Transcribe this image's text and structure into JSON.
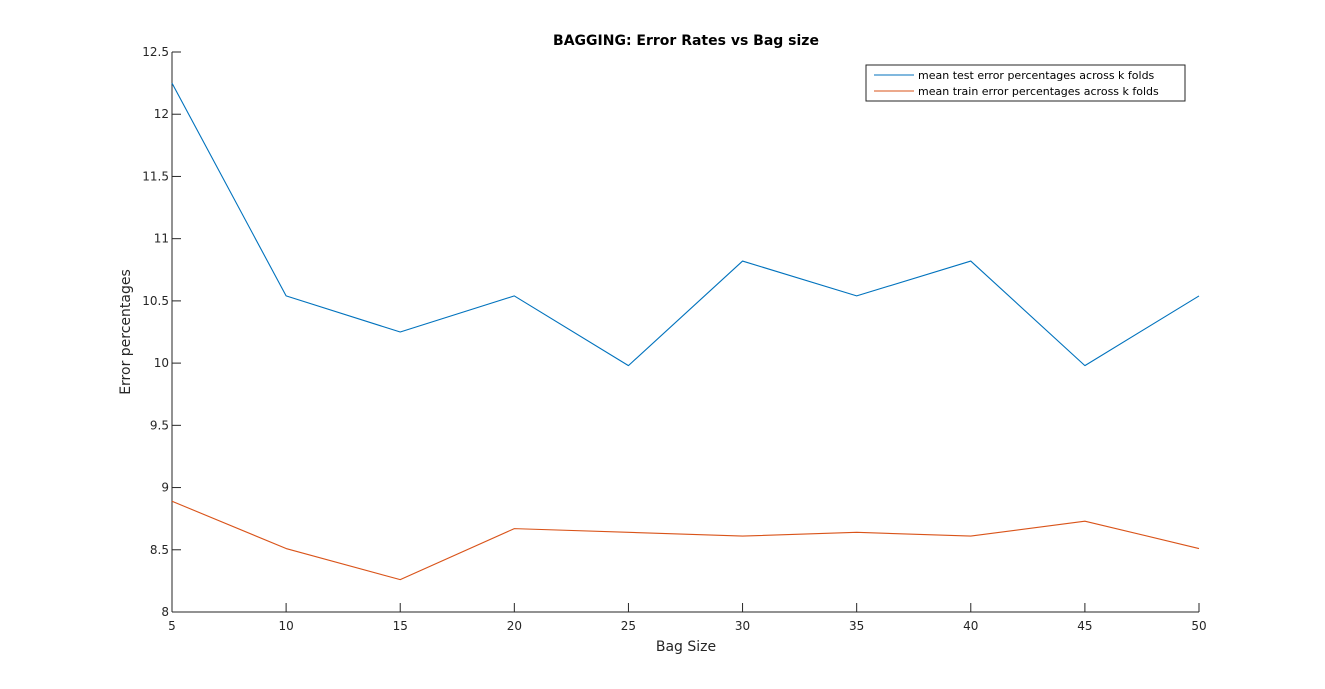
{
  "chart_data": {
    "type": "line",
    "title": "BAGGING: Error Rates vs Bag size",
    "xlabel": "Bag Size",
    "ylabel": "Error percentages",
    "xlim": [
      5,
      50
    ],
    "ylim": [
      8,
      12.5
    ],
    "x": [
      5,
      10,
      15,
      20,
      25,
      30,
      35,
      40,
      45,
      50
    ],
    "xticks": [
      "5",
      "10",
      "15",
      "20",
      "25",
      "30",
      "35",
      "40",
      "45",
      "50"
    ],
    "yticks": [
      "8",
      "8.5",
      "9",
      "9.5",
      "10",
      "10.5",
      "11",
      "11.5",
      "12",
      "12.5"
    ],
    "grid": false,
    "legend_position": "top-right",
    "series": [
      {
        "name": "mean test error percentages across k folds",
        "color": "#0072BD",
        "values": [
          12.25,
          10.54,
          10.25,
          10.54,
          9.98,
          10.82,
          10.54,
          10.82,
          9.98,
          10.54
        ]
      },
      {
        "name": "mean train error percentages across k folds",
        "color": "#D95319",
        "values": [
          8.89,
          8.51,
          8.26,
          8.67,
          8.64,
          8.61,
          8.64,
          8.61,
          8.73,
          8.51
        ]
      }
    ]
  }
}
